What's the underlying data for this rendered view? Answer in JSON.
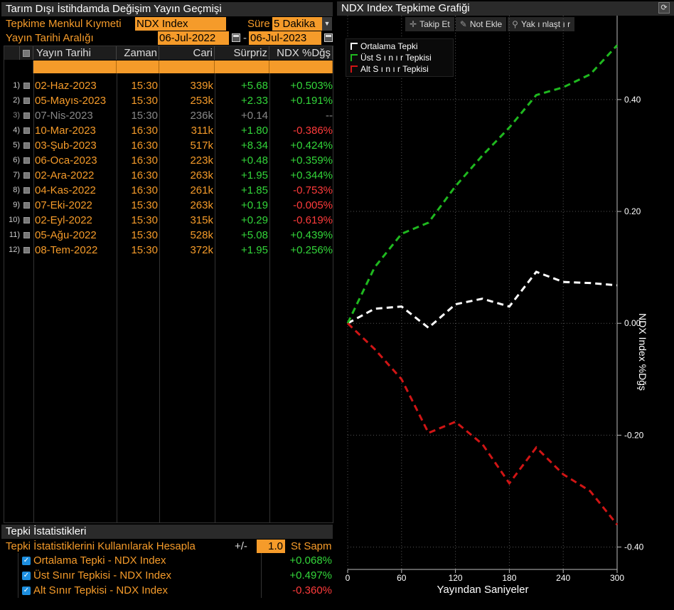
{
  "left": {
    "title": "Tarım Dışı İstihdamda Değişim Yayın Geçmişi",
    "security_label": "Tepkime Menkul Kıymeti",
    "security_value": "NDX Index",
    "duration_label": "Süre",
    "duration_value": "5 Dakika",
    "range_label": "Yayın Tarihi Aralığı",
    "range_start": "06-Jul-2022",
    "range_sep": "-",
    "range_end": "06-Jul-2023",
    "columns": [
      "Yayın Tarihi",
      "Zaman",
      "Cari",
      "Sürpriz",
      "NDX %Dğş"
    ],
    "rows": [
      {
        "n": "1)",
        "date": "02-Haz-2023",
        "time": "15:30",
        "cari": "339k",
        "surp": "+5.68",
        "chg": "+0.503%",
        "cls": "pos"
      },
      {
        "n": "2)",
        "date": "05-Mayıs-2023",
        "time": "15:30",
        "cari": "253k",
        "surp": "+2.33",
        "chg": "+0.191%",
        "cls": "pos"
      },
      {
        "n": "3)",
        "date": "07-Nis-2023",
        "time": "15:30",
        "cari": "236k",
        "surp": "+0.14",
        "chg": "--",
        "cls": "dim"
      },
      {
        "n": "4)",
        "date": "10-Mar-2023",
        "time": "16:30",
        "cari": "311k",
        "surp": "+1.80",
        "chg": "-0.386%",
        "cls": "neg"
      },
      {
        "n": "5)",
        "date": "03-Şub-2023",
        "time": "16:30",
        "cari": "517k",
        "surp": "+8.34",
        "chg": "+0.424%",
        "cls": "pos"
      },
      {
        "n": "6)",
        "date": "06-Oca-2023",
        "time": "16:30",
        "cari": "223k",
        "surp": "+0.48",
        "chg": "+0.359%",
        "cls": "pos"
      },
      {
        "n": "7)",
        "date": "02-Ara-2022",
        "time": "16:30",
        "cari": "263k",
        "surp": "+1.95",
        "chg": "+0.344%",
        "cls": "pos"
      },
      {
        "n": "8)",
        "date": "04-Kas-2022",
        "time": "16:30",
        "cari": "261k",
        "surp": "+1.85",
        "chg": "-0.753%",
        "cls": "neg"
      },
      {
        "n": "9)",
        "date": "07-Eki-2022",
        "time": "15:30",
        "cari": "263k",
        "surp": "+0.19",
        "chg": "-0.005%",
        "cls": "neg"
      },
      {
        "n": "10)",
        "date": "02-Eyl-2022",
        "time": "15:30",
        "cari": "315k",
        "surp": "+0.29",
        "chg": "-0.619%",
        "cls": "neg"
      },
      {
        "n": "11)",
        "date": "05-Ağu-2022",
        "time": "15:30",
        "cari": "528k",
        "surp": "+5.08",
        "chg": "+0.439%",
        "cls": "pos"
      },
      {
        "n": "12)",
        "date": "08-Tem-2022",
        "time": "15:30",
        "cari": "372k",
        "surp": "+1.95",
        "chg": "+0.256%",
        "cls": "pos"
      }
    ],
    "stats_title": "Tepki İstatistikleri",
    "stats_calc_label": "Tepki İstatistiklerini Kullanılarak Hesapla",
    "stats_pm": "+/-",
    "stats_pm_value": "1.0",
    "stats_unit": "St Sapm",
    "stats": [
      {
        "label": "Ortalama Tepki - NDX Index",
        "value": "+0.068%",
        "cls": "pos"
      },
      {
        "label": "Üst Sınır Tepkisi - NDX Index",
        "value": "+0.497%",
        "cls": "pos"
      },
      {
        "label": "Alt Sınır Tepkisi - NDX Index",
        "value": "-0.360%",
        "cls": "neg"
      }
    ]
  },
  "right": {
    "title": "NDX Index Tepkime Grafiği",
    "toolbar": [
      "Takip Et",
      "Not Ekle",
      "Yak ı nlaşt ı r"
    ],
    "toolbar_icons": [
      "crosshair-icon",
      "pencil-icon",
      "magnifier-icon"
    ]
  },
  "colors": {
    "accent": "#f59b2a",
    "positive": "#33d63a",
    "negative": "#ff3b3b",
    "series_avg": "#ffffff",
    "series_upper": "#1fb81f",
    "series_lower": "#d01515"
  },
  "chart_data": {
    "type": "line",
    "xlabel": "Yayından Saniyeler",
    "ylabel": "NDX Index %Dğş",
    "xlim": [
      0,
      300
    ],
    "ylim": [
      -0.44,
      0.55
    ],
    "xticks": [
      0,
      60,
      120,
      180,
      240,
      300
    ],
    "yticks": [
      0.4,
      0.2,
      0.0,
      -0.2,
      -0.4
    ],
    "ytick_labels": [
      "0.40",
      "0.20",
      "0.00",
      "-0.20",
      "-0.40"
    ],
    "grid": true,
    "legend_position": "top-left",
    "x": [
      0,
      30,
      60,
      90,
      120,
      150,
      180,
      210,
      240,
      270,
      300
    ],
    "series": [
      {
        "name": "Ortalama Tepki",
        "dash": "white",
        "values": [
          0.0,
          0.026,
          0.03,
          -0.008,
          0.034,
          0.044,
          0.03,
          0.092,
          0.074,
          0.072,
          0.068
        ]
      },
      {
        "name": "Üst S ı n ı r Tepkisi",
        "dash": "green",
        "values": [
          0.0,
          0.1,
          0.16,
          0.18,
          0.245,
          0.3,
          0.35,
          0.408,
          0.422,
          0.445,
          0.497
        ]
      },
      {
        "name": "Alt S ı n ı r Tepkisi",
        "dash": "red",
        "values": [
          0.0,
          -0.046,
          -0.1,
          -0.196,
          -0.176,
          -0.216,
          -0.286,
          -0.222,
          -0.27,
          -0.3,
          -0.36
        ]
      }
    ]
  }
}
